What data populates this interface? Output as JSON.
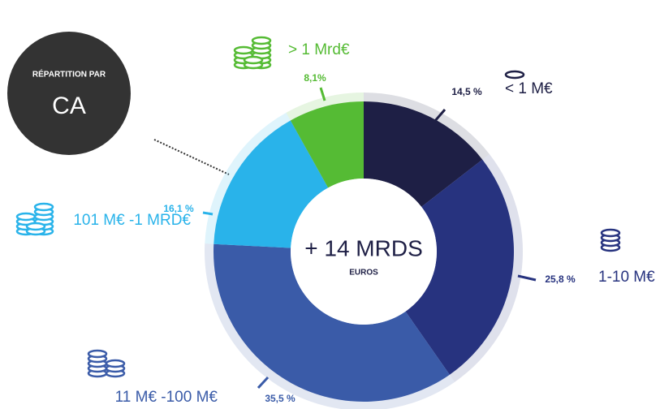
{
  "chart_data": {
    "type": "pie",
    "title": "CA",
    "subtitle": "RÉPARTITION PAR",
    "center_text": "+ 14 MRDS",
    "center_subtext": "EUROS",
    "categories": [
      "< 1 M€",
      "1-10 M€",
      "11 M€ -100 M€",
      "101 M€ -1 MRD€",
      "> 1 Mrd€"
    ],
    "values": [
      14.5,
      25.8,
      35.5,
      16.1,
      8.1
    ],
    "value_labels": [
      "14,5 %",
      "25,8 %",
      "35,5 %",
      "16,1 %",
      "8,1%"
    ],
    "colors": [
      "#1e1f45",
      "#27337f",
      "#3a5ba8",
      "#29b3ea",
      "#55bb34"
    ]
  }
}
